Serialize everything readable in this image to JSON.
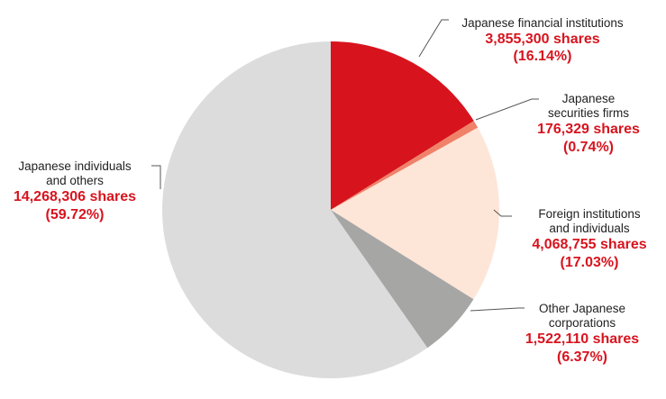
{
  "chart_data": {
    "type": "pie",
    "slices": [
      {
        "name_lines": [
          "Japanese financial institutions"
        ],
        "shares": "3,855,300 shares",
        "percent": "(16.14%)",
        "value": 16.14,
        "color": "#d7141e"
      },
      {
        "name_lines": [
          "Japanese",
          "securities firms"
        ],
        "shares": "176,329 shares",
        "percent": "(0.74%)",
        "value": 0.74,
        "color": "#f0826a"
      },
      {
        "name_lines": [
          "Foreign institutions",
          "and individuals"
        ],
        "shares": "4,068,755 shares",
        "percent": "(17.03%)",
        "value": 17.03,
        "color": "#fde5d8"
      },
      {
        "name_lines": [
          "Other Japanese",
          "corporations"
        ],
        "shares": "1,522,110 shares",
        "percent": "(6.37%)",
        "value": 6.37,
        "color": "#a6a6a5"
      },
      {
        "name_lines": [
          "Japanese individuals",
          "and others"
        ],
        "shares": "14,268,306 shares",
        "percent": "(59.72%)",
        "value": 59.72,
        "color": "#dcdcdc"
      }
    ]
  }
}
